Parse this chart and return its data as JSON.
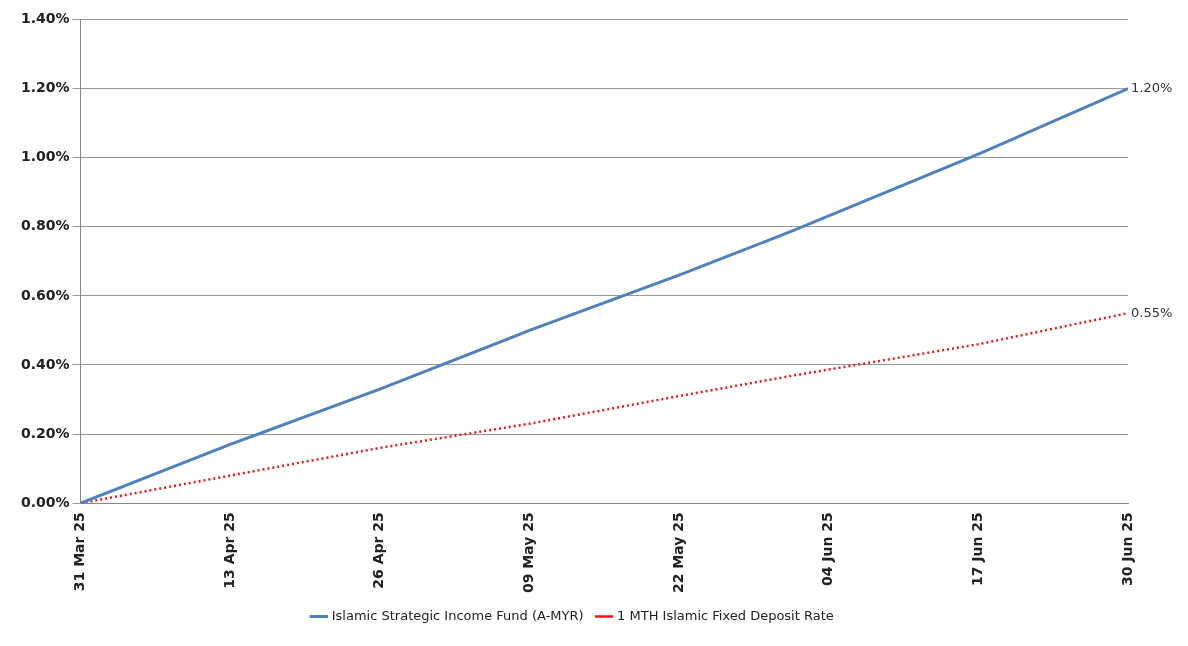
{
  "chart_data": {
    "type": "line",
    "x": [
      "--03-31",
      "--04-13",
      "--04-26",
      "--05-09",
      "--05-22",
      "--06-01",
      "--06-17",
      "--06-30"
    ],
    "series": [
      {
        "name": "Islamic Strategic Income Fund (A-MYR)",
        "color": "#4f81bd",
        "line_style": "solid",
        "values": [
          0,
          0.17,
          0.33,
          0.5,
          0.66,
          0.79,
          1.01,
          1.2
        ],
        "value_labels": [
          null,
          null,
          null,
          null,
          null,
          null,
          null,
          "1.20%"
        ]
      },
      {
        "name": "1 MTH Islamic Fixed Deposit Rate",
        "color": "#e31a1c",
        "line_style": "dotted",
        "values": [
          0,
          0.08,
          0.16,
          0.23,
          0.31,
          0.37,
          0.46,
          0.55
        ],
        "value_labels": [
          null,
          null,
          null,
          null,
          null,
          null,
          null,
          "0.55%"
        ]
      }
    ],
    "xlim": [
      "--03-31",
      "--06-30"
    ],
    "xticks": [
      {
        "value": "--03-31",
        "label": "31 Mar 25"
      },
      {
        "value": "--04-13",
        "label": "13 Apr 25"
      },
      {
        "value": "--04-26",
        "label": "26 Apr 25"
      },
      {
        "value": "--05-09",
        "label": "09 May 25"
      },
      {
        "value": "--05-22",
        "label": "22 May 25"
      },
      {
        "value": "--06-04",
        "label": "04 Jun 25"
      },
      {
        "value": "--06-17",
        "label": "17 Jun 25"
      },
      {
        "value": "--06-30",
        "label": "30 Jun 25"
      }
    ],
    "ylim": [
      0,
      1.4
    ],
    "yticks": [
      {
        "value": 0,
        "label": "0.00%"
      },
      {
        "value": 0.2,
        "label": "0.20%"
      },
      {
        "value": 0.4,
        "label": "0.40%"
      },
      {
        "value": 0.6,
        "label": "0.60%"
      },
      {
        "value": 0.8,
        "label": "0.80%"
      },
      {
        "value": 1,
        "label": "1.00%"
      },
      {
        "value": 1.2,
        "label": "1.20%"
      },
      {
        "value": 1.4,
        "label": "1.40%"
      }
    ],
    "grid": "y",
    "legend": "bottom",
    "marker": "none"
  }
}
